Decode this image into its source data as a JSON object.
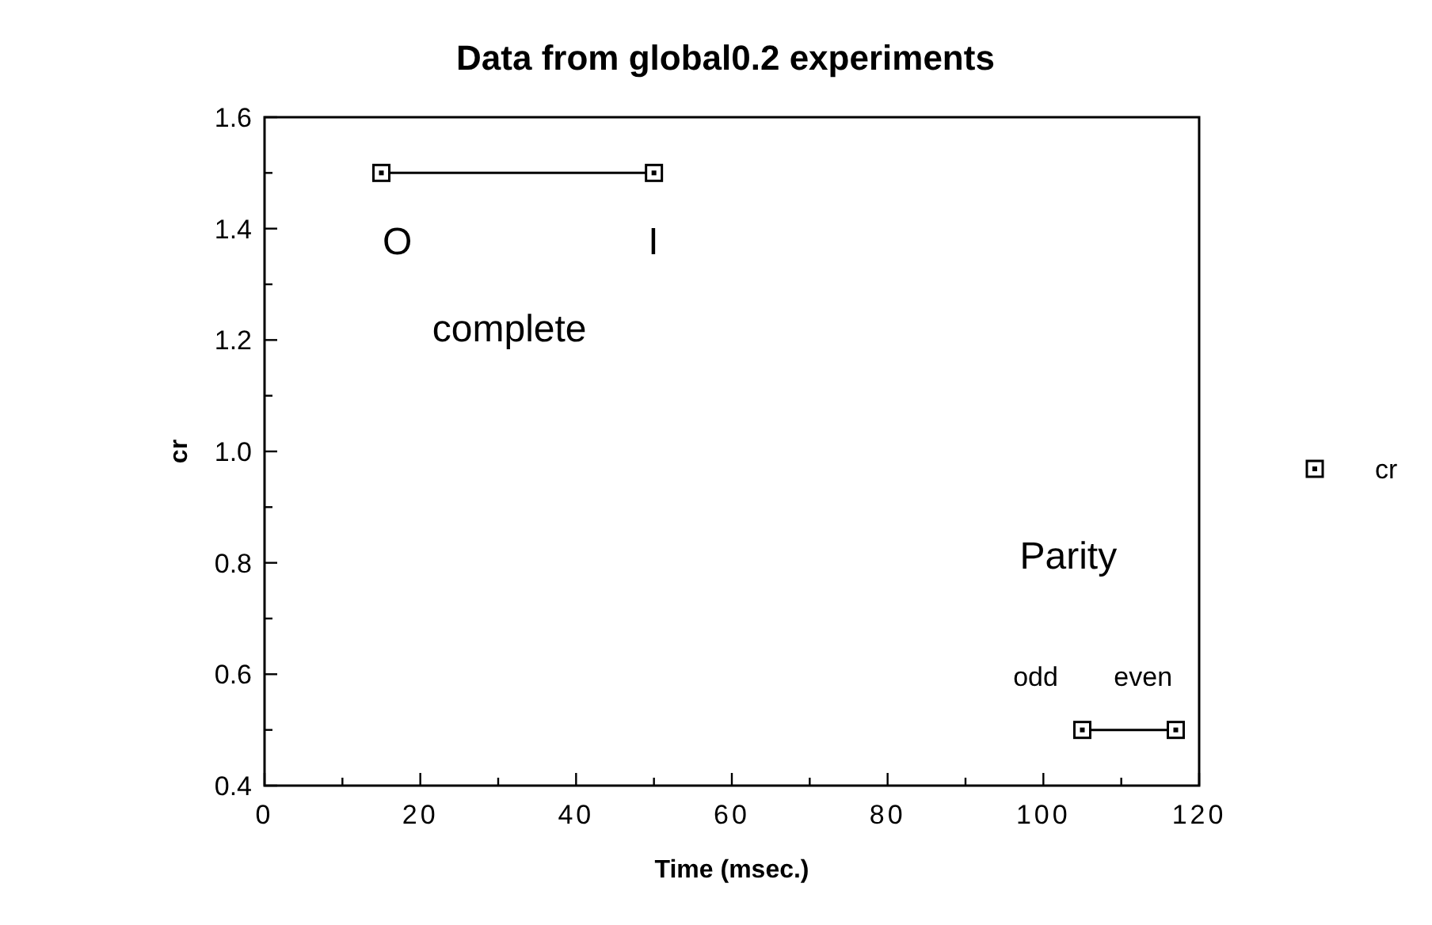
{
  "chart_data": {
    "type": "line",
    "title": "Data from global0.2 experiments",
    "xlabel": "Time (msec.)",
    "ylabel": "cr",
    "x": [
      15,
      50,
      null,
      105,
      117
    ],
    "series": [
      {
        "name": "cr",
        "color": "#000000",
        "values": [
          1.5,
          1.5,
          null,
          0.5,
          0.5
        ]
      }
    ],
    "xlim": [
      0,
      120
    ],
    "ylim": [
      0.4,
      1.6
    ],
    "xticks": [
      0,
      {
        "value": 10,
        "label": null
      },
      20,
      {
        "value": 30,
        "label": null
      },
      40,
      {
        "value": 50,
        "label": null
      },
      60,
      {
        "value": 70,
        "label": null
      },
      80,
      {
        "value": 90,
        "label": null
      },
      100,
      {
        "value": 110,
        "label": null
      },
      120
    ],
    "yticks": [
      0.4,
      {
        "value": 0.5,
        "label": null
      },
      0.6,
      {
        "value": 0.7,
        "label": null
      },
      0.8,
      {
        "value": 0.9,
        "label": null
      },
      {
        "value": 1,
        "label": "1.0"
      },
      {
        "value": 1.1,
        "label": null
      },
      1.2,
      {
        "value": 1.3,
        "label": null
      },
      1.4,
      {
        "value": 1.5,
        "label": null
      },
      1.6
    ],
    "marker": "square",
    "line_style": "solid",
    "legend": "right",
    "grid": false,
    "annotations": [
      "O",
      "I",
      "complete",
      "Parity",
      "odd",
      "even"
    ]
  }
}
